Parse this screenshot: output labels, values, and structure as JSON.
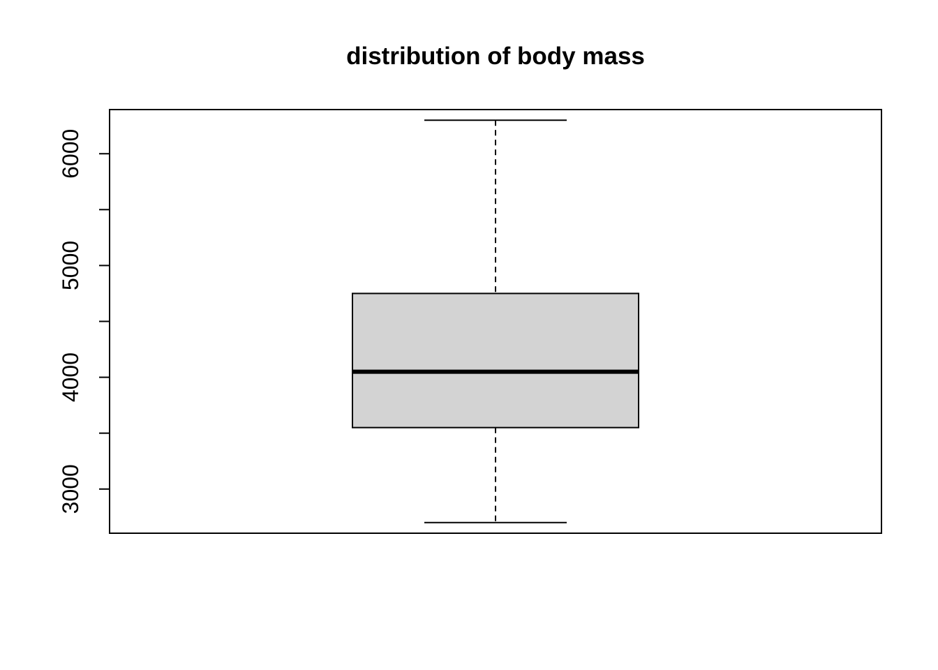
{
  "chart_data": {
    "type": "box",
    "title": "distribution of body mass",
    "xlabel": "",
    "ylabel": "",
    "ylim": [
      2605,
      6395
    ],
    "yticks": [
      3000,
      4000,
      5000,
      6000
    ],
    "yticks_minor": [
      3500,
      4500,
      5500
    ],
    "ytick_labels": [
      "3000",
      "4000",
      "5000",
      "6000"
    ],
    "box": {
      "whisker_low": 2700,
      "q1": 3550,
      "median": 4050,
      "q3": 4750,
      "whisker_high": 6300
    },
    "fill_color": "#d3d3d3",
    "line_color": "#000000",
    "grid": false
  }
}
